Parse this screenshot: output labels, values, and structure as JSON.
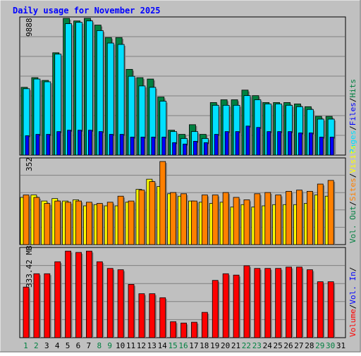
{
  "title": "Daily usage for November 2025",
  "colors": {
    "page_bg": "#c0c0c0",
    "title": "#0000ff",
    "hits": "#008040",
    "files": "#00e0ff",
    "pages": "#0000ff",
    "visits": "#ffff00",
    "sites": "#ff8000",
    "volume": "#ff0000",
    "weekday_label": "#000000",
    "weekend_label": "#008040",
    "vol_out_legend": "#008040",
    "vol_in_legend": "#0000ff"
  },
  "chart_data": [
    {
      "type": "bar",
      "panel": "hits-files-pages",
      "ymax_label": "9888",
      "ylim": [
        0,
        9888
      ],
      "categories": [
        "1",
        "2",
        "3",
        "4",
        "5",
        "6",
        "7",
        "8",
        "9",
        "10",
        "11",
        "12",
        "13",
        "14",
        "15",
        "16",
        "17",
        "18",
        "19",
        "20",
        "21",
        "22",
        "23",
        "24",
        "25",
        "26",
        "27",
        "28",
        "29",
        "30",
        "31"
      ],
      "weekend_days": [
        "1",
        "2",
        "8",
        "9",
        "15",
        "16",
        "22",
        "23",
        "29",
        "30"
      ],
      "legend": [
        "Hits",
        "Files",
        "Pages"
      ],
      "series": [
        {
          "name": "Hits",
          "color": "#008040",
          "values": [
            4900,
            5600,
            5400,
            7400,
            9888,
            9700,
            9888,
            9400,
            8500,
            8500,
            6200,
            5600,
            5500,
            4200,
            1800,
            1500,
            2200,
            1500,
            3800,
            4000,
            4000,
            4700,
            4300,
            3800,
            3800,
            3800,
            3700,
            3500,
            2800,
            2800,
            null
          ]
        },
        {
          "name": "Files",
          "color": "#00e0ff",
          "values": [
            4800,
            5500,
            5300,
            7300,
            9500,
            9600,
            9700,
            9000,
            8100,
            8000,
            5700,
            5000,
            4900,
            3900,
            1700,
            1200,
            1700,
            1200,
            3600,
            3600,
            3600,
            4300,
            4000,
            3700,
            3700,
            3600,
            3500,
            3300,
            2600,
            2600,
            null
          ]
        },
        {
          "name": "Pages",
          "color": "#0000ff",
          "values": [
            1400,
            1500,
            1500,
            1700,
            1800,
            1800,
            1800,
            1700,
            1500,
            1500,
            1300,
            1300,
            1300,
            1300,
            900,
            800,
            1000,
            900,
            1500,
            1700,
            1700,
            2100,
            2000,
            1700,
            1700,
            1700,
            1600,
            1600,
            1300,
            1300,
            null
          ]
        }
      ]
    },
    {
      "type": "bar",
      "panel": "visits-sites",
      "ymax_label": "352",
      "ylim": [
        0,
        352
      ],
      "categories": [
        "1",
        "2",
        "3",
        "4",
        "5",
        "6",
        "7",
        "8",
        "9",
        "10",
        "11",
        "12",
        "13",
        "14",
        "15",
        "16",
        "17",
        "18",
        "19",
        "20",
        "21",
        "22",
        "23",
        "24",
        "25",
        "26",
        "27",
        "28",
        "29",
        "30",
        "31"
      ],
      "legend": [
        "Visits",
        "Sites"
      ],
      "series": [
        {
          "name": "Visits",
          "color": "#ffff00",
          "values": [
            195,
            205,
            180,
            190,
            180,
            185,
            160,
            165,
            160,
            160,
            175,
            228,
            270,
            240,
            210,
            200,
            180,
            175,
            170,
            175,
            155,
            165,
            155,
            160,
            165,
            165,
            165,
            170,
            205,
            200,
            null
          ]
        },
        {
          "name": "Sites",
          "color": "#ff8000",
          "values": [
            205,
            195,
            170,
            180,
            175,
            180,
            175,
            170,
            175,
            200,
            180,
            225,
            260,
            343,
            215,
            210,
            180,
            205,
            205,
            215,
            195,
            185,
            210,
            215,
            205,
            220,
            225,
            220,
            250,
            265,
            null
          ]
        }
      ]
    },
    {
      "type": "bar",
      "panel": "volume",
      "ymax_label": "333.42 MB",
      "ylim": [
        0,
        333.42
      ],
      "categories": [
        "1",
        "2",
        "3",
        "4",
        "5",
        "6",
        "7",
        "8",
        "9",
        "10",
        "11",
        "12",
        "13",
        "14",
        "15",
        "16",
        "17",
        "18",
        "19",
        "20",
        "21",
        "22",
        "23",
        "24",
        "25",
        "26",
        "27",
        "28",
        "29",
        "30",
        "31"
      ],
      "legend": [
        "Volume",
        "Vol. In",
        "Vol. Out"
      ],
      "series": [
        {
          "name": "Volume",
          "color": "#ff0000",
          "values": [
            190,
            240,
            240,
            285,
            325,
            320,
            325,
            285,
            260,
            255,
            200,
            165,
            165,
            150,
            60,
            55,
            58,
            95,
            215,
            240,
            235,
            270,
            260,
            260,
            260,
            265,
            265,
            255,
            210,
            210,
            null
          ]
        }
      ]
    }
  ],
  "legend_labels": {
    "hits": "Hits",
    "files": "Files",
    "pages": "Pages",
    "visits": "Visits",
    "sites": "Sites",
    "vol_out": "Vol. Out",
    "vol_in": "Vol. In",
    "volume": "Volume",
    "sep": "/"
  }
}
